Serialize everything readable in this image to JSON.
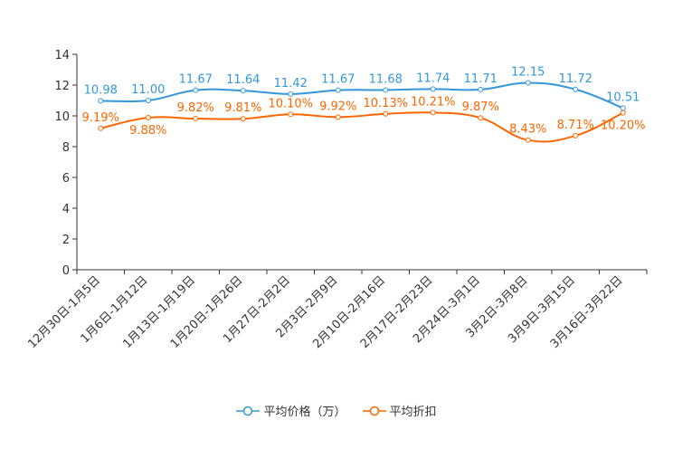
{
  "chart_data": {
    "type": "line",
    "categories": [
      "12月30日-1月5日",
      "1月6日-1月12日",
      "1月13日-1月19日",
      "1月20日-1月26日",
      "1月27日-2月2日",
      "2月3日-2月9日",
      "2月10日-2月16日",
      "2月17日-2月23日",
      "2月24日-3月1日",
      "3月2日-3月8日",
      "3月9日-3月15日",
      "3月16日-3月22日"
    ],
    "series": [
      {
        "name": "平均价格（万）",
        "color": "#3398db",
        "values": [
          10.98,
          11.0,
          11.67,
          11.64,
          11.42,
          11.67,
          11.68,
          11.74,
          11.71,
          12.15,
          11.72,
          10.51
        ],
        "labels": [
          "10.98",
          "11.00",
          "11.67",
          "11.64",
          "11.42",
          "11.67",
          "11.68",
          "11.74",
          "11.71",
          "12.15",
          "11.72",
          "10.51"
        ]
      },
      {
        "name": "平均折扣",
        "color": "#ff6600",
        "values": [
          9.19,
          9.88,
          9.82,
          9.81,
          10.1,
          9.92,
          10.13,
          10.21,
          9.87,
          8.43,
          8.71,
          10.2
        ],
        "labels": [
          "9.19%",
          "9.88%",
          "9.82%",
          "9.81%",
          "10.10%",
          "9.92%",
          "10.13%",
          "10.21%",
          "9.87%",
          "8.43%",
          "8.71%",
          "10.20%"
        ]
      }
    ],
    "ylim": [
      0,
      14
    ],
    "yticks": [
      0,
      2,
      4,
      6,
      8,
      10,
      12,
      14
    ],
    "legend": "bottom-center"
  }
}
